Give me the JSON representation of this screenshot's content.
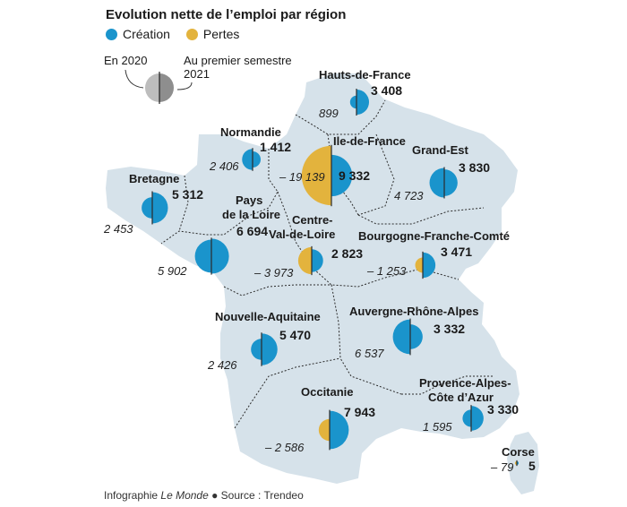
{
  "title": "Evolution nette de l’emploi par région",
  "legend": {
    "creation": "Création",
    "pertes": "Pertes"
  },
  "key": {
    "left": "En 2020",
    "right_line1": "Au premier semestre",
    "right_line2": "2021"
  },
  "footer": {
    "prefix": "Infographie ",
    "source_italic": "Le Monde",
    "suffix": " ● Source : Trendeo"
  },
  "colors": {
    "creation": "#1a94cc",
    "pertes": "#e3b33d",
    "land": "#d6e2ea",
    "border": "#2b2b2b"
  },
  "regions": [
    {
      "name_lines": [
        "Hauts-de-France"
      ],
      "creation": "3 408",
      "pertes": "899"
    },
    {
      "name_lines": [
        "Normandie"
      ],
      "creation": "1 412",
      "pertes": "2 406"
    },
    {
      "name_lines": [
        "Ile-de-France"
      ],
      "creation": "9 332",
      "pertes": "– 19 139"
    },
    {
      "name_lines": [
        "Grand-Est"
      ],
      "creation": "3 830",
      "pertes": "4 723"
    },
    {
      "name_lines": [
        "Bretagne"
      ],
      "creation": "5 312",
      "pertes": "2 453"
    },
    {
      "name_lines": [
        "Pays",
        "de la Loire"
      ],
      "creation": "6 694",
      "pertes": "5 902"
    },
    {
      "name_lines": [
        "Centre-",
        "Val-de-Loire"
      ],
      "creation": "2 823",
      "pertes": "– 3 973"
    },
    {
      "name_lines": [
        "Bourgogne-Franche-Comté"
      ],
      "creation": "3 471",
      "pertes": "– 1 253"
    },
    {
      "name_lines": [
        "Nouvelle-Aquitaine"
      ],
      "creation": "5 470",
      "pertes": "2 426"
    },
    {
      "name_lines": [
        "Auvergne-Rhône-Alpes"
      ],
      "creation": "3 332",
      "pertes": "6 537"
    },
    {
      "name_lines": [
        "Occitanie"
      ],
      "creation": "7 943",
      "pertes": "– 2 586"
    },
    {
      "name_lines": [
        "Provence-Alpes-",
        "Côte d’Azur"
      ],
      "creation": "3 330",
      "pertes": "1 595"
    },
    {
      "name_lines": [
        "Corse"
      ],
      "creation": "5",
      "pertes": "– 79"
    }
  ]
}
